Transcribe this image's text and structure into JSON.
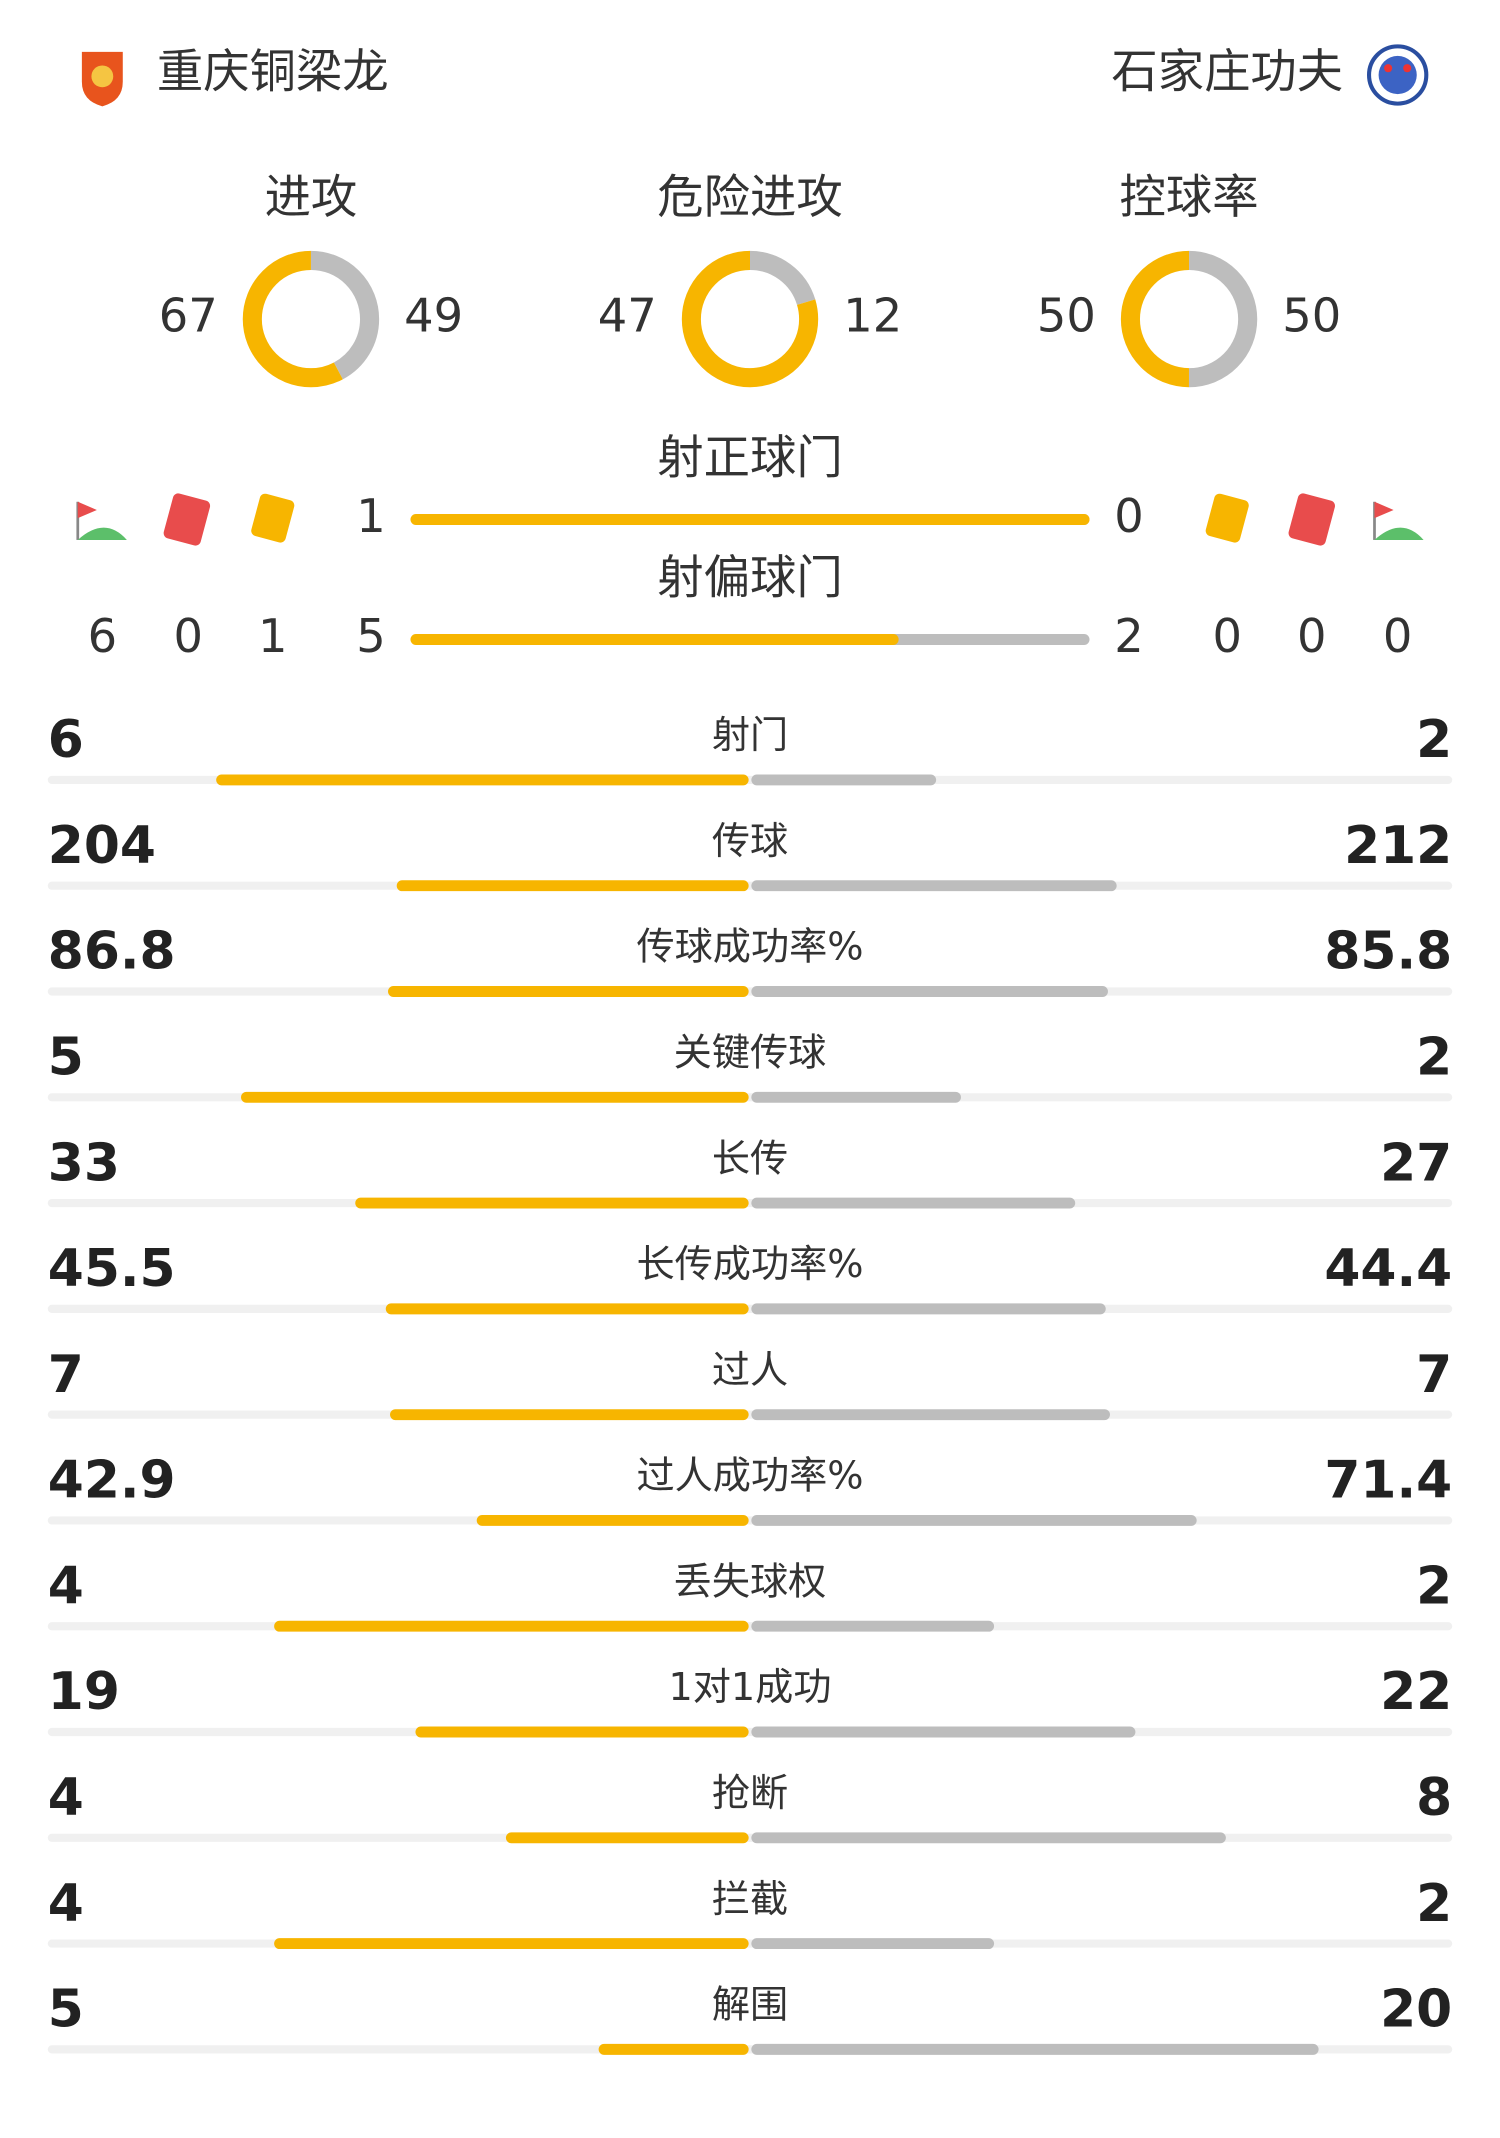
{
  "home": {
    "name": "重庆铜梁龙"
  },
  "away": {
    "name": "石家庄功夫"
  },
  "colors": {
    "home": "#f7b500",
    "away": "#bdbdbd",
    "track": "#f0f0f0"
  },
  "rings": [
    {
      "label": "进攻",
      "home": 67,
      "away": 49
    },
    {
      "label": "危险进攻",
      "home": 47,
      "away": 12
    },
    {
      "label": "控球率",
      "home": 50,
      "away": 50
    }
  ],
  "cards": {
    "home": {
      "corners": 6,
      "red": 0,
      "yellow": 1
    },
    "away": {
      "yellow": 0,
      "red": 0,
      "corners": 0
    }
  },
  "shots": [
    {
      "label": "射正球门",
      "home": 1,
      "away": 0
    },
    {
      "label": "射偏球门",
      "home": 5,
      "away": 2
    }
  ],
  "stats": [
    {
      "label": "射门",
      "home": 6,
      "away": 2
    },
    {
      "label": "传球",
      "home": 204,
      "away": 212
    },
    {
      "label": "传球成功率%",
      "home": 86.8,
      "away": 85.8
    },
    {
      "label": "关键传球",
      "home": 5,
      "away": 2
    },
    {
      "label": "长传",
      "home": 33,
      "away": 27
    },
    {
      "label": "长传成功率%",
      "home": 45.5,
      "away": 44.4
    },
    {
      "label": "过人",
      "home": 7,
      "away": 7
    },
    {
      "label": "过人成功率%",
      "home": 42.9,
      "away": 71.4
    },
    {
      "label": "丢失球权",
      "home": 4,
      "away": 2
    },
    {
      "label": "1对1成功",
      "home": 19,
      "away": 22
    },
    {
      "label": "抢断",
      "home": 4,
      "away": 8
    },
    {
      "label": "拦截",
      "home": 4,
      "away": 2
    },
    {
      "label": "解围",
      "home": 5,
      "away": 20
    }
  ]
}
